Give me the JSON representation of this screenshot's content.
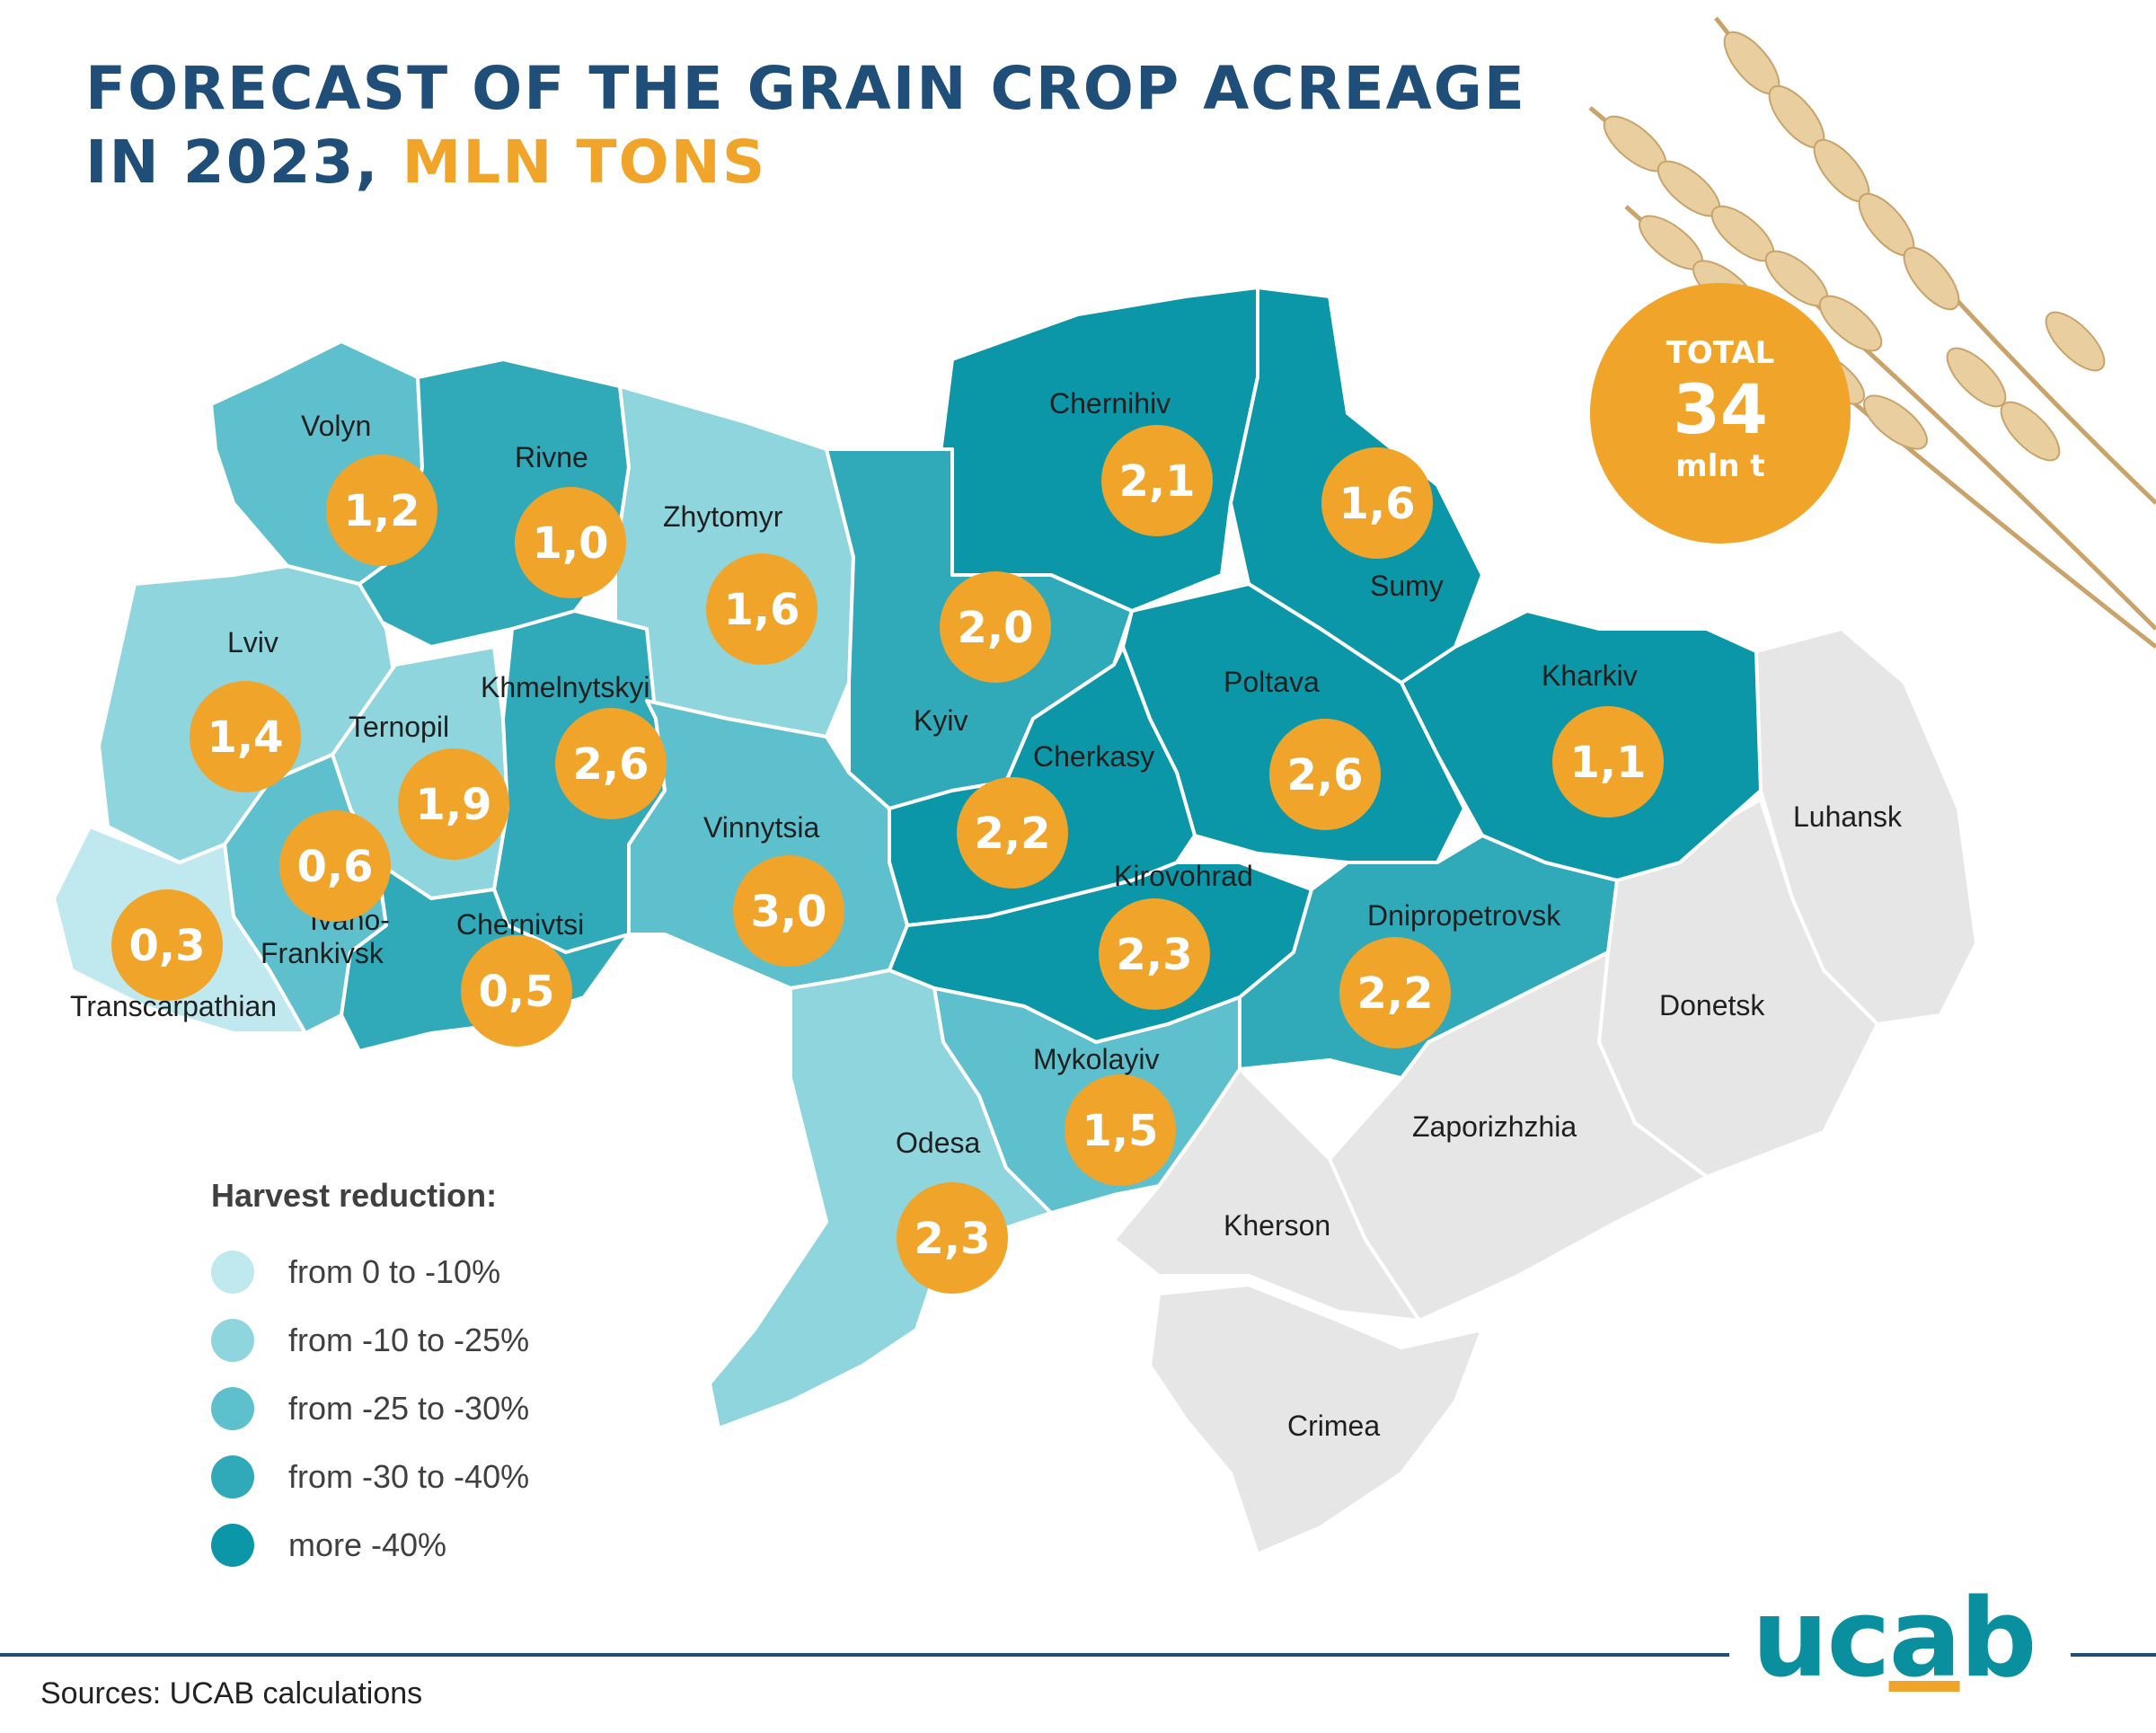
{
  "title": {
    "line1": "FORECAST OF THE GRAIN CROP ACREAGE",
    "line2": "IN 2023, ",
    "accent": "MLN TONS"
  },
  "total": {
    "label": "TOTAL",
    "value": "34",
    "unit": "mln t"
  },
  "legend": {
    "title": "Harvest reduction:",
    "items": [
      {
        "label": "from 0 to -10%",
        "color": "#bfe9ef"
      },
      {
        "label": "from -10 to -25%",
        "color": "#8fd5de"
      },
      {
        "label": "from -25 to -30%",
        "color": "#5ec0cd"
      },
      {
        "label": "from -30 to -40%",
        "color": "#30a9b9"
      },
      {
        "label": "more -40%",
        "color": "#0b97a8"
      }
    ]
  },
  "regions": [
    {
      "name": "Volyn",
      "value": "1,2",
      "tier": 2
    },
    {
      "name": "Rivne",
      "value": "1,0",
      "tier": 3
    },
    {
      "name": "Zhytomyr",
      "value": "1,6",
      "tier": 1
    },
    {
      "name": "Chernihiv",
      "value": "2,1",
      "tier": 4
    },
    {
      "name": "Sumy",
      "value": "1,6",
      "tier": 4
    },
    {
      "name": "Kyiv",
      "value": "2,0",
      "tier": 3
    },
    {
      "name": "Lviv",
      "value": "1,4",
      "tier": 1
    },
    {
      "name": "Ternopil",
      "value": "1,9",
      "tier": 1
    },
    {
      "name": "Khmelnytskyi",
      "value": "2,6",
      "tier": 3
    },
    {
      "name": "Poltava",
      "value": "2,6",
      "tier": 4
    },
    {
      "name": "Kharkiv",
      "value": "1,1",
      "tier": 4
    },
    {
      "name": "Cherkasy",
      "value": "2,2",
      "tier": 4
    },
    {
      "name": "Vinnytsia",
      "value": "3,0",
      "tier": 2
    },
    {
      "name": "Ivano-Frankivsk",
      "value": "0,6",
      "tier": 2
    },
    {
      "name": "Transcarpathian",
      "value": "0,3",
      "tier": 0
    },
    {
      "name": "Chernivtsi",
      "value": "0,5",
      "tier": 3
    },
    {
      "name": "Kirovohrad",
      "value": "2,3",
      "tier": 4
    },
    {
      "name": "Dnipropetrovsk",
      "value": "2,2",
      "tier": 3
    },
    {
      "name": "Mykolayiv",
      "value": "1,5",
      "tier": 2
    },
    {
      "name": "Odesa",
      "value": "2,3",
      "tier": 1
    }
  ],
  "occupied": [
    "Luhansk",
    "Donetsk",
    "Zaporizhzhia",
    "Kherson",
    "Crimea"
  ],
  "sources": "Sources: UCAB calculations",
  "logo": {
    "text": "ucab",
    "dot_color": "#f0a42a",
    "color": "#0a8f9f"
  }
}
